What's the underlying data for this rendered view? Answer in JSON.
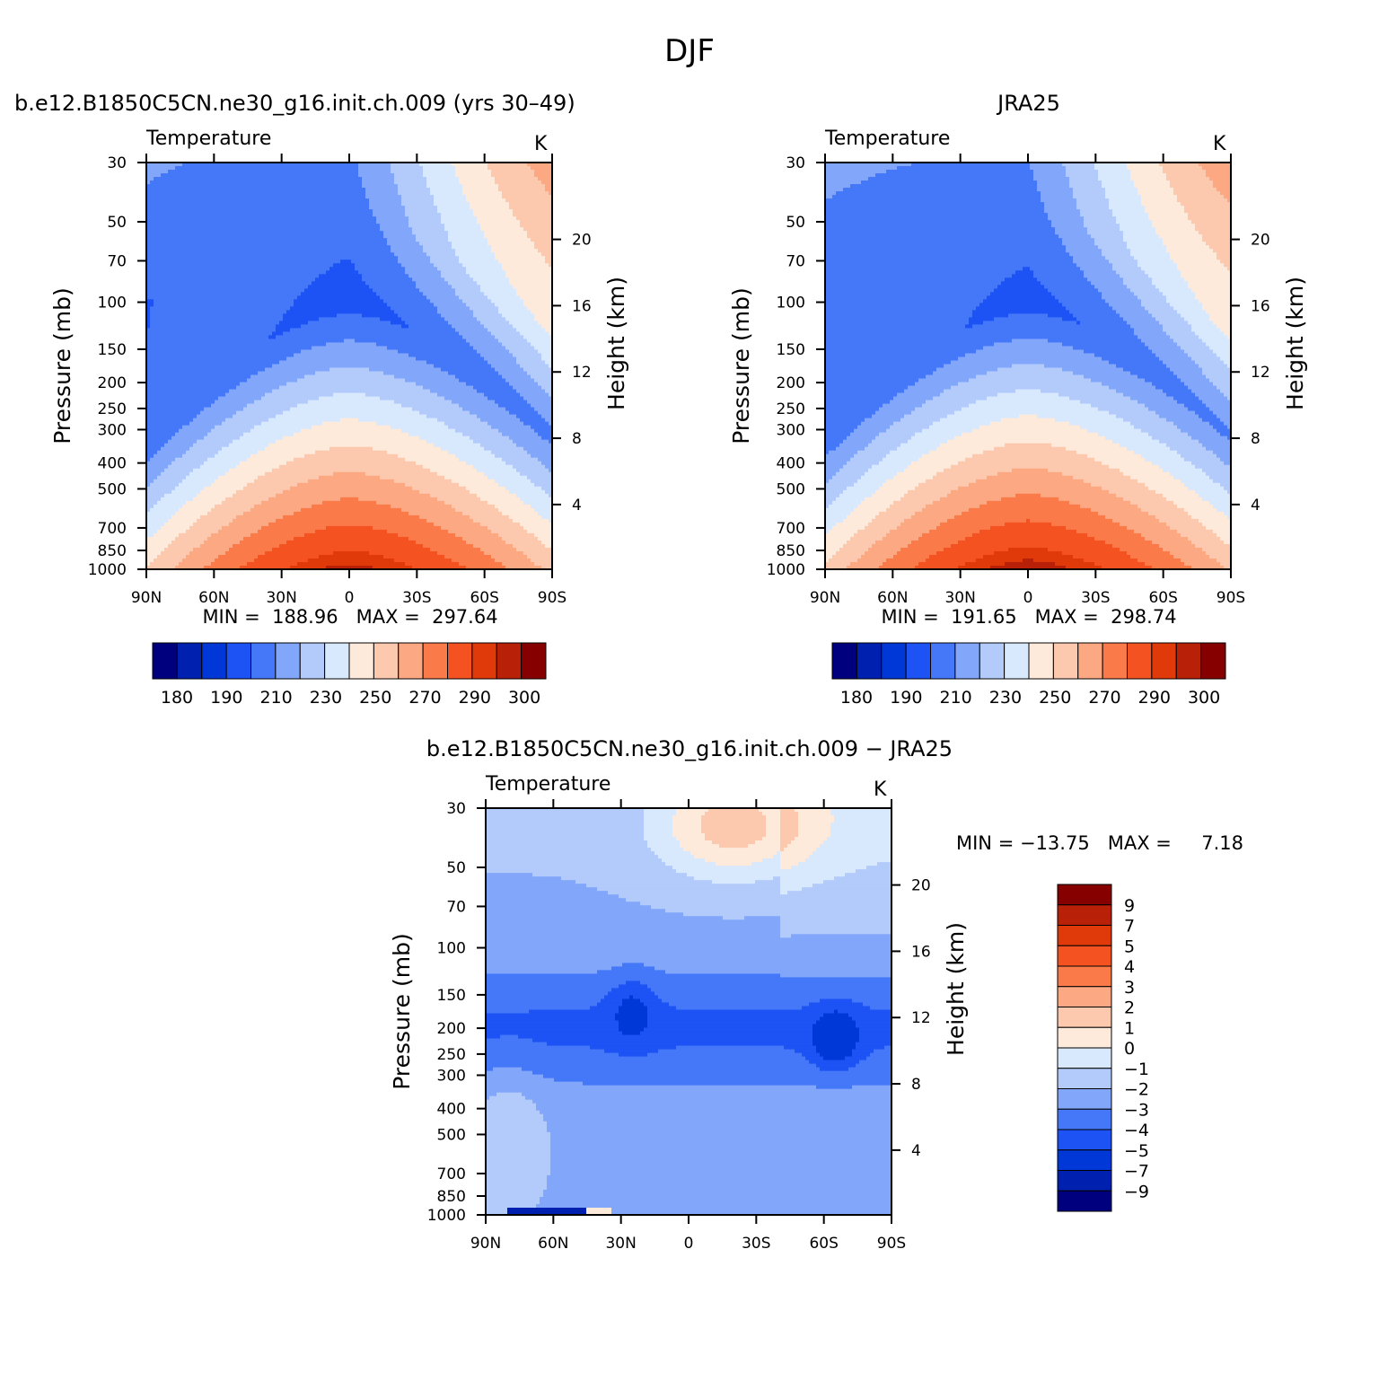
{
  "figure": {
    "title": "DJF"
  },
  "palettes": {
    "abs_colors": [
      "#00007f",
      "#0020b0",
      "#0038d8",
      "#1d52f5",
      "#4478f8",
      "#82a6fa",
      "#b3cbfb",
      "#d8e8fd",
      "#feeadb",
      "#fdc9ae",
      "#fca882",
      "#fb7a4a",
      "#f45321",
      "#e03a0a",
      "#b82008",
      "#860000"
    ],
    "abs_labels": [
      "180",
      "190",
      "210",
      "230",
      "250",
      "270",
      "290",
      "300"
    ],
    "diff_colors": [
      "#00007f",
      "#0020b0",
      "#0038d8",
      "#1d52f5",
      "#4478f8",
      "#82a6fa",
      "#b3cbfb",
      "#d8e8fd",
      "#feeadb",
      "#fdc9ae",
      "#fca882",
      "#fb7a4a",
      "#f45321",
      "#e03a0a",
      "#b82008",
      "#860000"
    ],
    "diff_labels": [
      "9",
      "7",
      "5",
      "4",
      "3",
      "2",
      "1",
      "0",
      "−1",
      "−2",
      "−3",
      "−4",
      "−5",
      "−7",
      "−9"
    ]
  },
  "chart_data": [
    {
      "type": "heatmap",
      "panel": "model",
      "title": "b.e12.B1850C5CN.ne30_g16.init.ch.009 (yrs 30–49)",
      "left_string": "Temperature",
      "right_string": "K",
      "ylabel": "Pressure (mb)",
      "ylabel_right": "Height (km)",
      "x_ticks": [
        "90N",
        "60N",
        "30N",
        "0",
        "30S",
        "60S",
        "90S"
      ],
      "y_ticks": [
        "30",
        "50",
        "70",
        "100",
        "150",
        "200",
        "250",
        "300",
        "400",
        "500",
        "700",
        "850",
        "1000"
      ],
      "y_ticks_right": [
        "20",
        "16",
        "12",
        "8",
        "4"
      ],
      "stats": "MIN =  188.96   MAX =  297.64",
      "min": 188.96,
      "max": 297.64,
      "levels": [
        180,
        185,
        190,
        200,
        210,
        220,
        230,
        240,
        250,
        260,
        270,
        280,
        290,
        295,
        300
      ]
    },
    {
      "type": "heatmap",
      "panel": "obs",
      "title": "JRA25",
      "left_string": "Temperature",
      "right_string": "K",
      "ylabel": "Pressure (mb)",
      "ylabel_right": "Height (km)",
      "x_ticks": [
        "90N",
        "60N",
        "30N",
        "0",
        "30S",
        "60S",
        "90S"
      ],
      "y_ticks": [
        "30",
        "50",
        "70",
        "100",
        "150",
        "200",
        "250",
        "300",
        "400",
        "500",
        "700",
        "850",
        "1000"
      ],
      "y_ticks_right": [
        "20",
        "16",
        "12",
        "8",
        "4"
      ],
      "stats": "MIN =  191.65   MAX =  298.74",
      "min": 191.65,
      "max": 298.74,
      "levels": [
        180,
        185,
        190,
        200,
        210,
        220,
        230,
        240,
        250,
        260,
        270,
        280,
        290,
        295,
        300
      ]
    },
    {
      "type": "heatmap",
      "panel": "diff",
      "title": "b.e12.B1850C5CN.ne30_g16.init.ch.009 − JRA25",
      "left_string": "Temperature",
      "right_string": "K",
      "ylabel": "Pressure (mb)",
      "ylabel_right": "Height (km)",
      "x_ticks": [
        "90N",
        "60N",
        "30N",
        "0",
        "30S",
        "60S",
        "90S"
      ],
      "y_ticks": [
        "30",
        "50",
        "70",
        "100",
        "150",
        "200",
        "250",
        "300",
        "400",
        "500",
        "700",
        "850",
        "1000"
      ],
      "y_ticks_right": [
        "20",
        "16",
        "12",
        "8",
        "4"
      ],
      "stats": "MIN = −13.75   MAX =     7.18",
      "min": -13.75,
      "max": 7.18,
      "levels": [
        -9,
        -7,
        -5,
        -4,
        -3,
        -2,
        -1,
        0,
        1,
        2,
        3,
        4,
        5,
        7,
        9
      ]
    }
  ]
}
